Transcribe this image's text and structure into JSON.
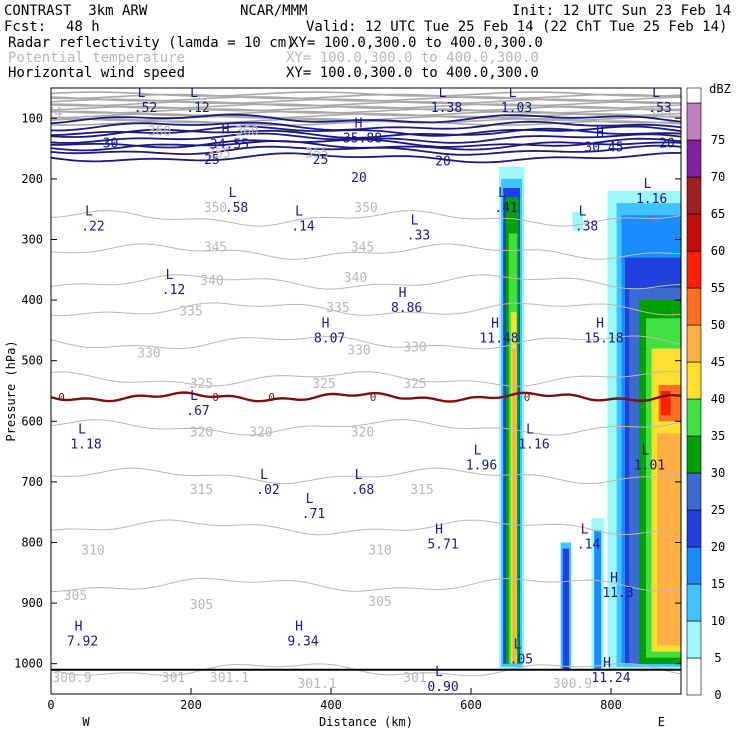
{
  "header": {
    "title": "CONTRAST  3km ARW",
    "model": "NCAR/MMM",
    "init": "Init: 12 UTC Sun 23 Feb 14",
    "fcst_label": "Fcst:",
    "fcst_value": "48 h",
    "valid": "Valid: 12 UTC Tue 25 Feb 14 (22 ChT Tue 25 Feb 14)",
    "fields": [
      {
        "name": "Radar reflectivity (lamda = 10 cm)",
        "xy": "XY= 100.0,300.0 to 400.0,300.0",
        "color": "#000000"
      },
      {
        "name": "Potential temperature",
        "xy": "XY= 100.0,300.0 to 400.0,300.0",
        "color": "#b8b8b8"
      },
      {
        "name": "Horizontal wind speed",
        "xy": "XY= 100.0,300.0 to 400.0,300.0",
        "color": "#000000"
      }
    ]
  },
  "chart_data": {
    "type": "cross-section",
    "xlabel": "Distance (km)",
    "ylabel": "Pressure (hPa)",
    "xlim": [
      0,
      900
    ],
    "ylim_hpa": [
      1050,
      50
    ],
    "x_ticks": [
      0,
      200,
      400,
      600,
      800
    ],
    "y_ticks": [
      100,
      200,
      300,
      400,
      500,
      600,
      700,
      800,
      900,
      1000
    ],
    "west_label": "W",
    "east_label": "E",
    "colorbar": {
      "unit": "dBZ",
      "levels": [
        0,
        5,
        10,
        15,
        20,
        25,
        30,
        35,
        40,
        45,
        50,
        55,
        60,
        65,
        70,
        75
      ],
      "colors": [
        "#ffffff",
        "#9ef8f8",
        "#40c4ff",
        "#1a8cff",
        "#2040e0",
        "#3c6ad0",
        "#00a000",
        "#40e040",
        "#ffe030",
        "#ffb040",
        "#ff7020",
        "#ff2000",
        "#c01010",
        "#a02020",
        "#8020a0",
        "#c080c0"
      ]
    },
    "theta_contours": {
      "color": "#b8b8b8",
      "levels": [
        {
          "value": 300.9,
          "p": 1010
        },
        {
          "value": 305,
          "p": 870
        },
        {
          "value": 310,
          "p": 775
        },
        {
          "value": 315,
          "p": 690
        },
        {
          "value": 320,
          "p": 610
        },
        {
          "value": 325,
          "p": 530
        },
        {
          "value": 330,
          "p": 470
        },
        {
          "value": 335,
          "p": 415
        },
        {
          "value": 340,
          "p": 370
        },
        {
          "value": 345,
          "p": 320
        },
        {
          "value": 350,
          "p": 265
        }
      ],
      "labels": [
        "300.9",
        "301",
        "301.1",
        "301.1",
        "301",
        "300.9",
        "305",
        "305",
        "305",
        "310",
        "310",
        "315",
        "315",
        "320",
        "320",
        "320",
        "325",
        "325",
        "325",
        "330",
        "330",
        "330",
        "335",
        "335",
        "340",
        "340",
        "345",
        "345",
        "350",
        "350",
        "355",
        "355",
        "360",
        "360",
        "385",
        "74"
      ]
    },
    "wind_contours": {
      "color": "#1a1a80",
      "levels": [
        {
          "value": 20,
          "p": 165
        },
        {
          "value": 25,
          "p": 145
        },
        {
          "value": 30,
          "p": 125
        }
      ],
      "labels": [
        "30",
        "25",
        "25",
        "20",
        "20",
        "20"
      ]
    },
    "freezing_line": {
      "color": "#7a1010",
      "p": 560,
      "label": "0"
    },
    "extrema": [
      {
        "type": "L",
        "value": ".52",
        "x": 135,
        "p": 75
      },
      {
        "type": "L",
        "value": ".12",
        "x": 210,
        "p": 75
      },
      {
        "type": "L",
        "value": "1.38",
        "x": 565,
        "p": 75
      },
      {
        "type": "L",
        "value": "1.03",
        "x": 665,
        "p": 75
      },
      {
        "type": "L",
        "value": ".53",
        "x": 870,
        "p": 75
      },
      {
        "type": "H",
        "value": "34.55",
        "x": 255,
        "p": 135
      },
      {
        "type": "H",
        "value": "35.88",
        "x": 445,
        "p": 125
      },
      {
        "type": "H",
        "value": "30.45",
        "x": 790,
        "p": 140
      },
      {
        "type": "L",
        "value": ".58",
        "x": 265,
        "p": 240
      },
      {
        "type": "L",
        "value": ".14",
        "x": 360,
        "p": 270
      },
      {
        "type": "L",
        "value": ".22",
        "x": 60,
        "p": 270
      },
      {
        "type": "L",
        "value": ".33",
        "x": 525,
        "p": 285
      },
      {
        "type": "L",
        "value": ".41",
        "x": 650,
        "p": 240
      },
      {
        "type": "L",
        "value": ".38",
        "x": 765,
        "p": 270
      },
      {
        "type": "L",
        "value": "1.16",
        "x": 858,
        "p": 225
      },
      {
        "type": "L",
        "value": ".12",
        "x": 175,
        "p": 375
      },
      {
        "type": "H",
        "value": "8.86",
        "x": 508,
        "p": 405
      },
      {
        "type": "H",
        "value": "8.07",
        "x": 398,
        "p": 455
      },
      {
        "type": "H",
        "value": "11.48",
        "x": 640,
        "p": 455
      },
      {
        "type": "H",
        "value": "15.18",
        "x": 790,
        "p": 455
      },
      {
        "type": "L",
        "value": ".67",
        "x": 210,
        "p": 575
      },
      {
        "type": "L",
        "value": "1.18",
        "x": 50,
        "p": 630
      },
      {
        "type": "L",
        "value": "1.16",
        "x": 690,
        "p": 630
      },
      {
        "type": "L",
        "value": "1.96",
        "x": 615,
        "p": 665
      },
      {
        "type": "L",
        "value": "1.01",
        "x": 855,
        "p": 665
      },
      {
        "type": "L",
        "value": ".02",
        "x": 310,
        "p": 705
      },
      {
        "type": "L",
        "value": ".68",
        "x": 445,
        "p": 705
      },
      {
        "type": "L",
        "value": ".71",
        "x": 375,
        "p": 745
      },
      {
        "type": "H",
        "value": "5.71",
        "x": 560,
        "p": 795
      },
      {
        "type": "L",
        "value": ".14",
        "x": 768,
        "p": 795
      },
      {
        "type": "H",
        "value": "11.3",
        "x": 810,
        "p": 875
      },
      {
        "type": "H",
        "value": "7.92",
        "x": 45,
        "p": 955
      },
      {
        "type": "H",
        "value": "9.34",
        "x": 360,
        "p": 955
      },
      {
        "type": "L",
        "value": ".05",
        "x": 672,
        "p": 985
      },
      {
        "type": "H",
        "value": "11.24",
        "x": 800,
        "p": 1015
      },
      {
        "type": "L",
        "value": "0.90",
        "x": 560,
        "p": 1030
      }
    ]
  }
}
